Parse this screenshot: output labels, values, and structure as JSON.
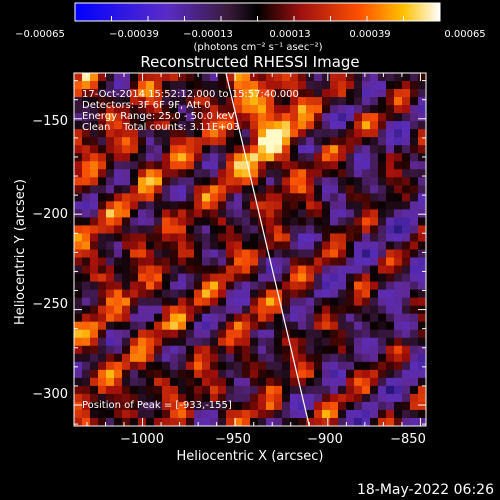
{
  "chart_data": {
    "type": "heatmap",
    "title": "Reconstructed RHESSI Image",
    "xlabel": "Heliocentric X (arcsec)",
    "ylabel": "Heliocentric Y (arcsec)",
    "x_ticks": [
      "−1000",
      "−950",
      "−900",
      "−850"
    ],
    "x_tick_values": [
      -1000,
      -950,
      -900,
      -850
    ],
    "y_ticks": [
      "−150",
      "−200",
      "−250",
      "−300"
    ],
    "y_tick_values": [
      -150,
      -200,
      -250,
      -300
    ],
    "xlim": [
      -1037,
      -847
    ],
    "ylim": [
      -311,
      -126
    ],
    "colorbar": {
      "ticks": [
        "−0.00065",
        "−0.00039",
        "−0.00013",
        "0.00013",
        "0.00039",
        "0.00065"
      ],
      "range": [
        -0.00065,
        0.00065
      ],
      "units_label": "(photons cm⁻² s⁻¹ asec⁻²)"
    },
    "annotations": [
      "17-Oct-2014 15:52:12.000 to 15:57:40.000",
      "Detectors: 3F 6F 9F, Att 0",
      "Energy Range: 25.0 - 50.0 keV",
      "Clean    Total counts: 3.11E+03",
      "Position of Peak = [-933,-155]"
    ],
    "limb_line": {
      "x": [
        -955,
        -910
      ],
      "y": [
        -126,
        -311
      ]
    },
    "peak": {
      "x": -933,
      "y": -155
    }
  },
  "footer_date": "18-May-2022 06:26"
}
